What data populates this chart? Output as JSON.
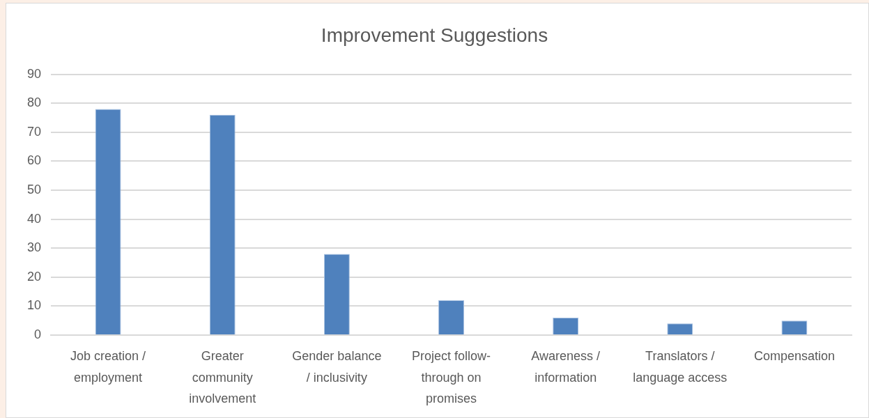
{
  "chart_data": {
    "type": "bar",
    "title": "Improvement Suggestions",
    "categories": [
      "Job creation / employment",
      "Greater community involvement",
      "Gender balance / inclusivity",
      "Project follow-through on promises",
      "Awareness / information",
      "Translators / language access",
      "Compensation"
    ],
    "values": [
      78,
      76,
      28,
      12,
      6,
      4,
      5
    ],
    "color": "#4f81bd",
    "ylim": [
      0,
      90
    ],
    "yticks": [
      0,
      10,
      20,
      30,
      40,
      50,
      60,
      70,
      80,
      90
    ],
    "grid": "y",
    "legend": false
  }
}
